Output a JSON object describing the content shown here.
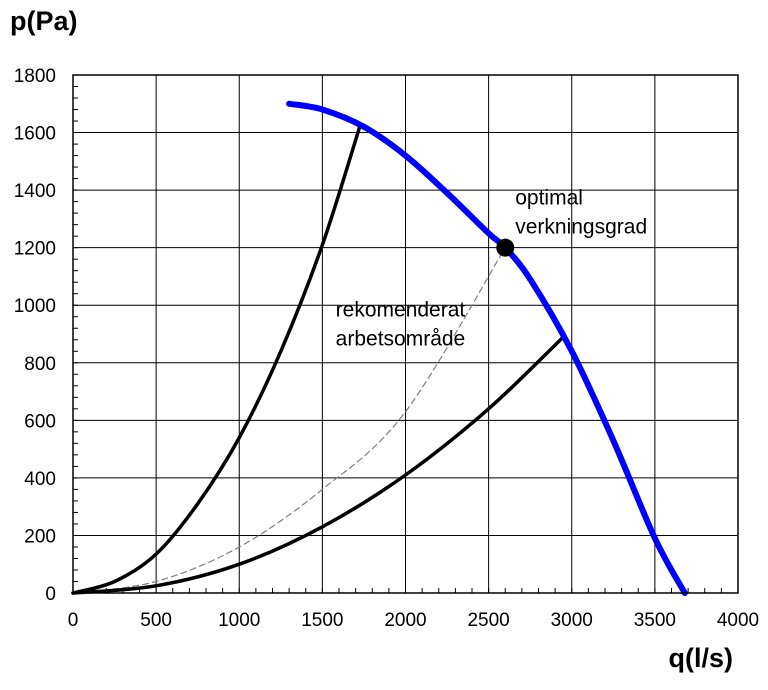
{
  "chart_data": {
    "type": "line",
    "title": "",
    "xlabel": "q(l/s)",
    "ylabel": "p(Pa)",
    "xlim": [
      0,
      4000
    ],
    "ylim": [
      0,
      1800
    ],
    "x_ticks": [
      "0",
      "500",
      "1000",
      "1500",
      "2000",
      "2500",
      "3000",
      "3500",
      "4000"
    ],
    "y_ticks": [
      "0",
      "200",
      "400",
      "600",
      "800",
      "1000",
      "1200",
      "1400",
      "1600",
      "1800"
    ],
    "grid": true,
    "colors": {
      "fan_curve": "#0000ff",
      "system_curve": "#000000",
      "optimal_curve": "#808080"
    },
    "series": [
      {
        "x": [
          1300,
          1500,
          1750,
          2000,
          2250,
          2500,
          2600,
          2750,
          3000,
          3250,
          3500,
          3680
        ],
        "y": [
          1700,
          1680,
          1620,
          1520,
          1390,
          1250,
          1200,
          1090,
          840,
          530,
          190,
          0
        ]
      },
      {
        "x": [
          0,
          250,
          500,
          750,
          1000,
          1250,
          1500,
          1730
        ],
        "y": [
          0,
          40,
          135,
          310,
          540,
          840,
          1210,
          1630
        ]
      },
      {
        "x": [
          0,
          500,
          1000,
          1500,
          2000,
          2500,
          2950
        ],
        "y": [
          0,
          25,
          100,
          230,
          410,
          640,
          890
        ]
      },
      {
        "x": [
          0,
          500,
          1000,
          1500,
          2000,
          2600
        ],
        "y": [
          0,
          40,
          160,
          360,
          630,
          1200
        ]
      }
    ],
    "points": [
      {
        "x": 2600,
        "y": 1200
      }
    ],
    "annotations": [
      {
        "lines": [
          "optimal",
          "verkningsgrad"
        ],
        "x": 2660,
        "y": 1350
      },
      {
        "lines": [
          "rekomenderat",
          "arbetsområde"
        ],
        "x": 1580,
        "y": 960
      }
    ]
  }
}
